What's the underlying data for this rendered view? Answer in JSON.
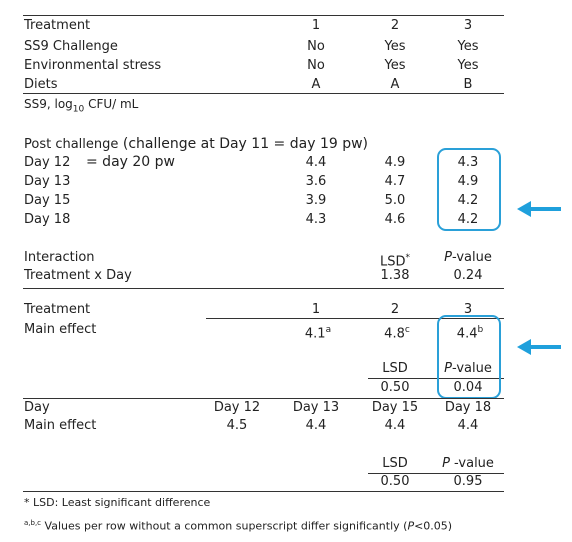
{
  "header": {
    "rows": [
      {
        "label": "Treatment",
        "v1": "1",
        "v2": "2",
        "v3": "3"
      },
      {
        "label": "SS9 Challenge",
        "v1": "No",
        "v2": "Yes",
        "v3": "Yes"
      },
      {
        "label": "Environmental stress",
        "v1": "No",
        "v2": "Yes",
        "v3": "Yes"
      },
      {
        "label": "Diets",
        "v1": "A",
        "v2": "A",
        "v3": "B"
      }
    ]
  },
  "measure": {
    "prefix": "SS9, log",
    "sub": "10",
    "suffix": " CFU/ mL"
  },
  "post_challenge": {
    "heading_main": "Post challenge",
    "heading_note": " (challenge at  Day 11  = day 19 pw)",
    "rows": [
      {
        "label": "Day 12",
        "note": "= day 20 pw",
        "v1": "4.4",
        "v2": "4.9",
        "v3": "4.3"
      },
      {
        "label": "Day 13",
        "v1": "3.6",
        "v2": "4.7",
        "v3": "4.9"
      },
      {
        "label": "Day 15",
        "v1": "3.9",
        "v2": "5.0",
        "v3": "4.2"
      },
      {
        "label": "Day 18",
        "v1": "4.3",
        "v2": "4.6",
        "v3": "4.2"
      }
    ]
  },
  "interaction": {
    "label1": "Interaction",
    "label2": "Treatment x Day",
    "lsd_header": "LSD",
    "lsd_mark": "*",
    "p_italic": "P",
    "p_rest": "-value",
    "lsd": "1.38",
    "p": "0.24"
  },
  "treatment_effect": {
    "label1": "Treatment",
    "label2": "Main effect",
    "cols": [
      "1",
      "2",
      "3"
    ],
    "vals": [
      {
        "v": "4.1",
        "sup": "a"
      },
      {
        "v": "4.8",
        "sup": "c"
      },
      {
        "v": "4.4",
        "sup": "b"
      }
    ],
    "lsd_header": "LSD",
    "p_italic": "P",
    "p_rest": "-value",
    "lsd": "0.50",
    "p": "0.04"
  },
  "day_effect": {
    "label1": "Day",
    "label2": "Main effect",
    "cols": [
      "Day 12",
      "Day 13",
      "Day 15",
      "Day 18"
    ],
    "vals": [
      "4.5",
      "4.4",
      "4.4",
      "4.4"
    ],
    "lsd_header": "LSD",
    "p_italic": "P",
    "p_rest": " -value",
    "lsd": "0.50",
    "p": "0.95"
  },
  "footnotes": {
    "f1_mark": "*",
    "f1_text": " LSD: Least significant difference",
    "f2_mark": "a,b,c",
    "f2_text": "  Values per row without a common superscript differ significantly (",
    "f2_p": "P",
    "f2_end": "<0.05)"
  },
  "colors": {
    "highlight": "#2aa0d8",
    "arrow": "#1fa0dc"
  }
}
